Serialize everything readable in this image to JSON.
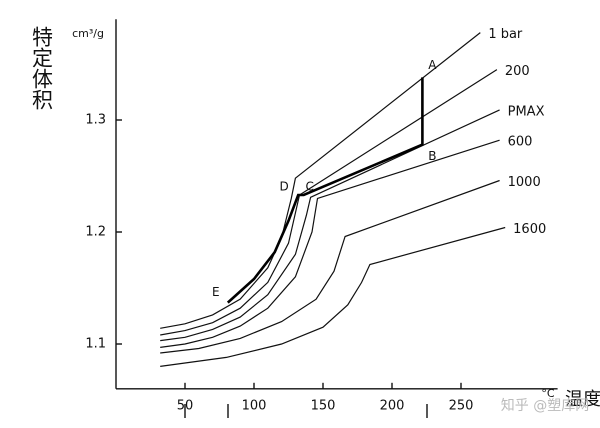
{
  "chart_data": {
    "type": "line",
    "y_label": "特定体积",
    "y_unit": "cm³/g",
    "x_label": "温度",
    "x_unit": "°C",
    "watermark": "知乎 @塑库网",
    "xlim": [
      0,
      320
    ],
    "xticks": [
      50,
      100,
      150,
      200,
      250
    ],
    "ylim": [
      1.06,
      1.39
    ],
    "yticks": [
      1.1,
      1.2,
      1.3
    ],
    "series": [
      {
        "name": "1 bar",
        "color": "#111111",
        "x": [
          32,
          50,
          70,
          90,
          110,
          120,
          127,
          130,
          264
        ],
        "values": [
          1.114,
          1.118,
          1.126,
          1.14,
          1.168,
          1.195,
          1.23,
          1.248,
          1.378
        ]
      },
      {
        "name": "200",
        "color": "#111111",
        "x": [
          32,
          50,
          70,
          90,
          110,
          125,
          133,
          276
        ],
        "values": [
          1.108,
          1.112,
          1.119,
          1.132,
          1.155,
          1.19,
          1.233,
          1.345
        ]
      },
      {
        "name": "PMAX",
        "color": "#111111",
        "x": [
          32,
          50,
          70,
          90,
          110,
          130,
          138,
          141,
          278
        ],
        "values": [
          1.103,
          1.106,
          1.113,
          1.124,
          1.144,
          1.18,
          1.215,
          1.231,
          1.309
        ]
      },
      {
        "name": "600",
        "color": "#111111",
        "x": [
          32,
          50,
          70,
          90,
          110,
          130,
          142,
          146,
          278
        ],
        "values": [
          1.097,
          1.1,
          1.106,
          1.116,
          1.132,
          1.16,
          1.2,
          1.23,
          1.282
        ]
      },
      {
        "name": "1000",
        "color": "#111111",
        "x": [
          32,
          60,
          90,
          120,
          145,
          158,
          166,
          278
        ],
        "values": [
          1.092,
          1.096,
          1.105,
          1.12,
          1.14,
          1.165,
          1.196,
          1.246
        ]
      },
      {
        "name": "1600",
        "color": "#111111",
        "x": [
          32,
          80,
          120,
          150,
          168,
          178,
          184,
          282
        ],
        "values": [
          1.08,
          1.088,
          1.1,
          1.115,
          1.135,
          1.155,
          1.171,
          1.204
        ]
      }
    ],
    "process_path": {
      "color": "#000000",
      "x": [
        81,
        100,
        115,
        125,
        132,
        136,
        222,
        222
      ],
      "values": [
        1.137,
        1.158,
        1.182,
        1.21,
        1.233,
        1.233,
        1.278,
        1.338
      ]
    },
    "annotations": [
      {
        "text": "A",
        "x": 222,
        "y": 1.338
      },
      {
        "text": "B",
        "x": 222,
        "y": 1.278
      },
      {
        "text": "C",
        "x": 136,
        "y": 1.233
      },
      {
        "text": "D",
        "x": 132,
        "y": 1.233
      },
      {
        "text": "E",
        "x": 81,
        "y": 1.137
      }
    ]
  }
}
